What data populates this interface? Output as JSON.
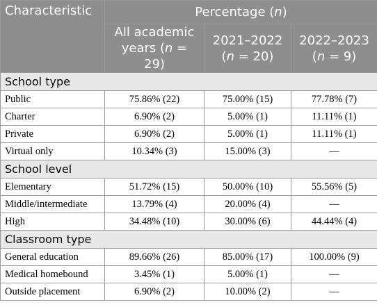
{
  "table": {
    "header": {
      "characteristic": "Characteristic",
      "percentage": [
        "Percentage (",
        "n",
        ")"
      ],
      "columns": [
        [
          "All academic years (",
          "n",
          " = 29)"
        ],
        [
          "2021–2022 (",
          "n",
          " = 20)"
        ],
        [
          "2022–2023 (",
          "n",
          " = 9)"
        ]
      ]
    },
    "sections": [
      {
        "title": "School type",
        "rows": [
          [
            "Public",
            "75.86% (22)",
            "75.00% (15)",
            "77.78% (7)"
          ],
          [
            "Charter",
            "6.90% (2)",
            "5.00% (1)",
            "11.11% (1)"
          ],
          [
            "Private",
            "6.90% (2)",
            "5.00% (1)",
            "11.11% (1)"
          ],
          [
            "Virtual only",
            "10.34% (3)",
            "15.00% (3)",
            "—"
          ]
        ]
      },
      {
        "title": "School level",
        "rows": [
          [
            "Elementary",
            "51.72% (15)",
            "50.00% (10)",
            "55.56% (5)"
          ],
          [
            "Middle/intermediate",
            "13.79% (4)",
            "20.00% (4)",
            "—"
          ],
          [
            "High",
            "34.48% (10)",
            "30.00% (6)",
            "44.44% (4)"
          ]
        ]
      },
      {
        "title": "Classroom type",
        "rows": [
          [
            "General education",
            "89.66% (26)",
            "85.00% (17)",
            "100.00% (9)"
          ],
          [
            "Medical homebound",
            "3.45% (1)",
            "5.00% (1)",
            "—"
          ],
          [
            "Outside placement",
            "6.90% (2)",
            "10.00% (2)",
            "—"
          ]
        ]
      }
    ]
  }
}
